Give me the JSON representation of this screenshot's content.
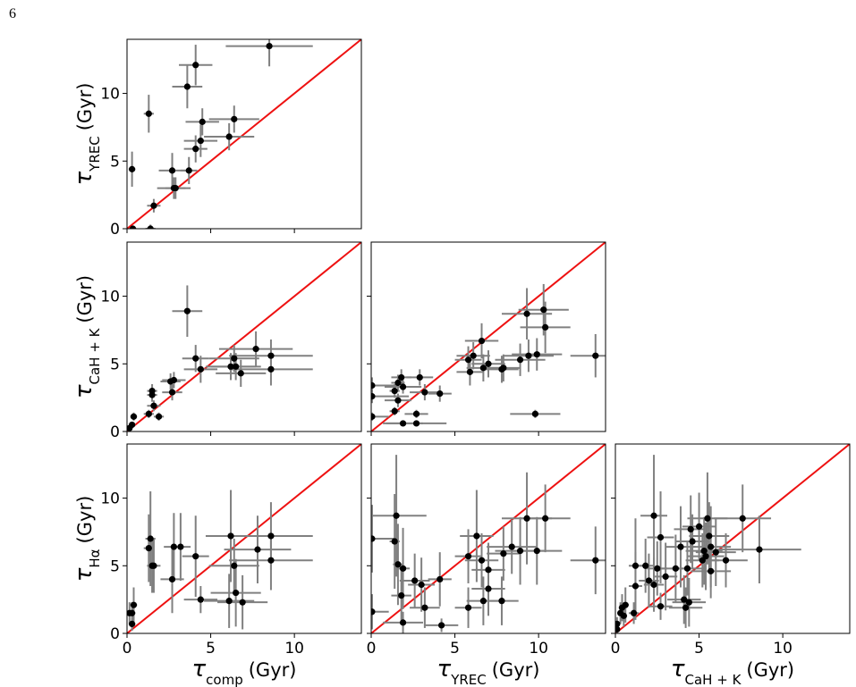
{
  "page_number": "6",
  "chart_data": [
    {
      "type": "scatter",
      "ylabel": {
        "symbol": "τ",
        "subscript": "YREC",
        "unit": "(Gyr)"
      },
      "x": [
        8.5,
        4.1,
        3.6,
        1.3,
        0.3,
        4.5,
        6.4,
        6.1,
        4.4,
        4.1,
        2.7,
        3.7,
        2.9,
        2.8,
        1.6,
        1.4,
        0.35
      ],
      "y": [
        13.5,
        12.1,
        10.5,
        8.5,
        4.4,
        7.9,
        8.1,
        6.8,
        6.5,
        5.9,
        4.3,
        4.3,
        3.0,
        3.0,
        1.7,
        0.0,
        0.0
      ],
      "xerr": [
        2.6,
        1.0,
        0.9,
        0.3,
        0.2,
        1.0,
        1.5,
        1.5,
        1.0,
        0.7,
        0.8,
        0.5,
        0.6,
        1.0,
        0.4,
        0.3,
        0.2
      ],
      "yerr": [
        1.5,
        1.5,
        1.6,
        1.4,
        1.3,
        1.0,
        1.0,
        1.0,
        1.2,
        1.0,
        1.3,
        1.0,
        0.8,
        0.8,
        0.5,
        0.3,
        0.2
      ],
      "xlim": [
        0,
        14
      ],
      "ylim": [
        0,
        14
      ],
      "xticks": [
        0,
        5,
        10
      ],
      "yticks": [
        0,
        5,
        10
      ],
      "xtick_labels": false,
      "ytick_labels": true,
      "identity_line": true,
      "line_color": "#ee1111",
      "point_color": "#000000",
      "error_color": "#808080"
    },
    {
      "type": "scatter",
      "ylabel": {
        "symbol": "τ",
        "subscript": "CaH + K",
        "unit": "(Gyr)"
      },
      "x": [
        3.6,
        7.7,
        8.6,
        8.6,
        6.4,
        6.2,
        6.5,
        6.8,
        4.1,
        4.4,
        2.8,
        2.6,
        2.7,
        1.5,
        1.5,
        1.6,
        1.3,
        1.9,
        0.4,
        0.3,
        0.15
      ],
      "y": [
        8.9,
        6.1,
        5.6,
        4.6,
        5.4,
        4.8,
        4.8,
        4.3,
        5.4,
        4.6,
        3.8,
        3.7,
        2.9,
        3.0,
        2.7,
        1.9,
        1.3,
        1.1,
        1.1,
        0.5,
        0.25
      ],
      "xerr": [
        0.9,
        2.2,
        2.5,
        2.5,
        1.5,
        1.5,
        1.5,
        1.5,
        0.8,
        1.0,
        0.7,
        0.6,
        0.6,
        0.3,
        0.3,
        0.4,
        0.3,
        0.3,
        0.2,
        0.2,
        0.1
      ],
      "yerr": [
        1.9,
        1.3,
        1.2,
        1.2,
        1.0,
        1.0,
        1.0,
        1.0,
        1.0,
        1.0,
        0.6,
        0.6,
        0.6,
        0.5,
        0.5,
        0.4,
        0.3,
        0.3,
        0.3,
        0.2,
        0.2
      ],
      "xlim": [
        0,
        14
      ],
      "ylim": [
        0,
        14
      ],
      "xticks": [
        0,
        5,
        10
      ],
      "yticks": [
        0,
        5,
        10
      ],
      "xtick_labels": false,
      "ytick_labels": true,
      "identity_line": true,
      "line_color": "#ee1111",
      "point_color": "#000000",
      "error_color": "#808080"
    },
    {
      "type": "scatter",
      "x": [
        9.3,
        10.3,
        10.4,
        13.4,
        6.6,
        9.9,
        9.4,
        8.9,
        6.1,
        7.0,
        7.9,
        7.8,
        6.7,
        5.9,
        5.8,
        9.8,
        4.1,
        2.9,
        3.2,
        2.7,
        2.7,
        1.9,
        1.8,
        1.6,
        1.4,
        1.9,
        1.6,
        0.05,
        0.05,
        0.05,
        1.4
      ],
      "y": [
        8.7,
        9.0,
        7.7,
        5.6,
        6.7,
        5.7,
        5.6,
        5.3,
        5.6,
        5.0,
        4.7,
        4.6,
        4.7,
        4.4,
        5.3,
        1.3,
        2.8,
        4.0,
        2.9,
        1.3,
        0.6,
        0.6,
        4.0,
        3.6,
        3.0,
        3.3,
        2.3,
        3.4,
        2.6,
        1.1,
        1.5
      ],
      "xerr": [
        1.5,
        1.5,
        1.5,
        1.5,
        1.0,
        1.5,
        1.5,
        1.5,
        1.0,
        1.0,
        1.0,
        1.0,
        1.0,
        0.8,
        0.8,
        1.5,
        0.7,
        0.8,
        0.9,
        0.7,
        1.8,
        1.2,
        0.6,
        0.4,
        0.3,
        1.1,
        0.8,
        1.5,
        2.2,
        1.0,
        0.3
      ],
      "yerr": [
        1.9,
        1.9,
        1.9,
        1.6,
        1.3,
        1.2,
        1.2,
        1.2,
        1.0,
        1.0,
        1.0,
        1.0,
        1.0,
        1.0,
        1.0,
        0.3,
        0.6,
        0.6,
        0.6,
        0.3,
        0.2,
        0.2,
        0.6,
        0.6,
        0.5,
        0.5,
        0.5,
        0.6,
        0.5,
        0.3,
        0.3
      ],
      "xlim": [
        0,
        14
      ],
      "ylim": [
        0,
        14
      ],
      "xticks": [
        0,
        5,
        10
      ],
      "yticks": [
        0,
        5,
        10
      ],
      "xtick_labels": false,
      "ytick_labels": false,
      "identity_line": true,
      "line_color": "#ee1111",
      "point_color": "#000000",
      "error_color": "#808080"
    },
    {
      "type": "scatter",
      "xlabel": {
        "symbol": "τ",
        "subscript": "comp",
        "unit": "(Gyr)"
      },
      "ylabel": {
        "symbol": "τ",
        "subscript": "Hα",
        "unit": "(Gyr)"
      },
      "x": [
        8.6,
        8.6,
        7.8,
        6.4,
        6.2,
        6.5,
        6.9,
        6.1,
        4.4,
        4.1,
        2.7,
        3.2,
        2.8,
        1.4,
        1.3,
        1.5,
        1.6,
        0.4,
        0.3,
        0.15,
        0.3
      ],
      "y": [
        7.2,
        5.4,
        6.2,
        5.0,
        7.2,
        3.0,
        2.3,
        2.4,
        2.5,
        5.7,
        4.0,
        6.4,
        6.4,
        7.0,
        6.3,
        5.0,
        5.0,
        2.1,
        1.5,
        1.5,
        0.7
      ],
      "xerr": [
        2.5,
        2.5,
        2.0,
        1.5,
        1.5,
        1.5,
        1.5,
        1.5,
        1.0,
        0.8,
        0.7,
        0.6,
        0.6,
        0.3,
        0.3,
        0.3,
        0.4,
        0.2,
        0.2,
        0.1,
        0.2
      ],
      "yerr": [
        2.5,
        2.2,
        2.5,
        2.0,
        3.4,
        2.5,
        2.0,
        2.0,
        1.0,
        3.0,
        2.5,
        2.5,
        2.5,
        3.5,
        2.5,
        2.0,
        2.0,
        1.3,
        0.8,
        0.8,
        0.5
      ],
      "xlim": [
        0,
        14
      ],
      "ylim": [
        0,
        14
      ],
      "xticks": [
        0,
        5,
        10
      ],
      "yticks": [
        0,
        5,
        10
      ],
      "xtick_labels": true,
      "ytick_labels": true,
      "identity_line": true,
      "line_color": "#ee1111",
      "point_color": "#000000",
      "error_color": "#808080"
    },
    {
      "type": "scatter",
      "xlabel": {
        "symbol": "τ",
        "subscript": "YREC",
        "unit": "(Gyr)"
      },
      "x": [
        13.4,
        10.4,
        9.3,
        9.9,
        8.9,
        8.4,
        7.9,
        6.3,
        6.6,
        7.0,
        7.0,
        6.7,
        7.8,
        5.8,
        5.8,
        4.1,
        3.0,
        2.6,
        3.2,
        4.2,
        1.9,
        1.8,
        1.9,
        1.6,
        1.4,
        1.5,
        0.05,
        0.05
      ],
      "y": [
        5.4,
        8.5,
        8.5,
        6.1,
        6.1,
        6.4,
        5.9,
        7.2,
        5.4,
        4.7,
        3.3,
        2.4,
        2.4,
        1.9,
        5.7,
        4.0,
        3.6,
        3.9,
        1.9,
        0.6,
        0.8,
        2.8,
        4.8,
        5.1,
        6.8,
        8.7,
        7.0,
        1.6
      ],
      "xerr": [
        1.5,
        1.5,
        1.5,
        1.5,
        1.5,
        1.5,
        1.0,
        1.0,
        1.0,
        1.0,
        1.0,
        1.0,
        1.0,
        0.8,
        0.8,
        0.7,
        0.8,
        0.9,
        0.9,
        1.0,
        1.2,
        0.6,
        0.4,
        0.3,
        0.3,
        1.8,
        1.5,
        1.0
      ],
      "yerr": [
        2.5,
        2.5,
        3.4,
        2.5,
        2.5,
        2.0,
        2.0,
        3.4,
        2.0,
        2.0,
        2.0,
        1.8,
        1.8,
        1.5,
        2.0,
        2.0,
        2.0,
        2.0,
        1.5,
        0.5,
        0.8,
        2.0,
        3.0,
        3.0,
        3.5,
        4.5,
        2.5,
        1.3
      ],
      "xlim": [
        0,
        14
      ],
      "ylim": [
        0,
        14
      ],
      "xticks": [
        0,
        5,
        10
      ],
      "yticks": [
        0,
        5,
        10
      ],
      "xtick_labels": true,
      "ytick_labels": false,
      "identity_line": true,
      "line_color": "#ee1111",
      "point_color": "#000000",
      "error_color": "#808080"
    },
    {
      "type": "scatter",
      "xlabel": {
        "symbol": "τ",
        "subscript": "CaH + K",
        "unit": "(Gyr)"
      },
      "x": [
        7.6,
        8.6,
        5.5,
        5.6,
        5.0,
        4.5,
        4.6,
        3.9,
        2.7,
        2.3,
        2.5,
        1.2,
        1.8,
        2.0,
        2.3,
        3.0,
        3.6,
        5.7,
        5.7,
        6.0,
        6.6,
        5.3,
        5.4,
        5.2,
        4.3,
        4.1,
        4.4,
        4.2,
        2.7,
        1.2,
        1.1,
        0.6,
        0.4,
        0.5,
        0.3,
        0.1,
        0.1
      ],
      "y": [
        8.5,
        6.2,
        8.5,
        7.2,
        7.9,
        7.7,
        6.8,
        6.4,
        7.1,
        8.7,
        4.8,
        5.0,
        5.0,
        3.9,
        3.6,
        4.2,
        4.8,
        6.4,
        4.6,
        6.0,
        5.4,
        6.1,
        5.7,
        5.4,
        4.8,
        2.5,
        2.3,
        1.9,
        2.0,
        3.5,
        1.5,
        2.1,
        1.9,
        1.3,
        1.5,
        0.7,
        0.3
      ],
      "xerr": [
        1.7,
        2.5,
        1.2,
        1.2,
        1.0,
        1.0,
        1.0,
        0.9,
        0.8,
        0.8,
        0.6,
        0.4,
        0.5,
        0.6,
        0.6,
        0.7,
        0.9,
        1.2,
        1.2,
        1.2,
        1.3,
        1.1,
        1.1,
        1.0,
        1.0,
        1.0,
        1.0,
        1.0,
        0.7,
        0.4,
        0.3,
        0.2,
        0.2,
        0.2,
        0.1,
        0.1,
        0.1
      ],
      "yerr": [
        2.5,
        2.5,
        3.4,
        2.5,
        2.5,
        2.5,
        2.0,
        3.0,
        3.4,
        4.5,
        2.0,
        3.5,
        2.0,
        2.0,
        2.0,
        2.5,
        2.5,
        3.0,
        2.0,
        2.5,
        2.0,
        2.5,
        2.5,
        2.0,
        2.0,
        1.8,
        1.8,
        1.5,
        1.0,
        2.5,
        0.8,
        1.3,
        1.0,
        0.8,
        0.8,
        0.5,
        0.3
      ],
      "xlim": [
        0,
        14
      ],
      "ylim": [
        0,
        14
      ],
      "xticks": [
        0,
        5,
        10
      ],
      "yticks": [
        0,
        5,
        10
      ],
      "xtick_labels": true,
      "ytick_labels": false,
      "identity_line": true,
      "line_color": "#ee1111",
      "point_color": "#000000",
      "error_color": "#808080"
    }
  ]
}
